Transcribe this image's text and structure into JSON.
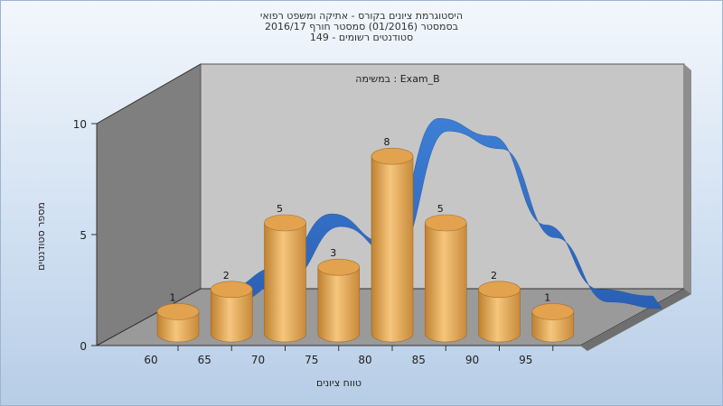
{
  "title": {
    "line1": "היסטוגרמת ציונים בקורס - אתיקה ומשפט רפואי",
    "line2": "בסמסטר  (01/2016)  סמסטר חורף 2016/17",
    "line3": "סטודנטים רשומים - 149"
  },
  "colors": {
    "bar": "#e2a24e",
    "curve": "#2f6cc4",
    "back_wall": "#c6c6c6",
    "side_wall": "#7f7f7f",
    "floor": "#9a9a9a"
  },
  "chart_data": {
    "type": "bar",
    "subtitle": "במשימה : Exam_B",
    "xlabel": "טווח ציונים",
    "ylabel": "מספר סטודנטים",
    "x_ticks": [
      "60",
      "65",
      "70",
      "75",
      "80",
      "85",
      "90",
      "95"
    ],
    "y_ticks": [
      "0",
      "5",
      "10"
    ],
    "ylim": [
      0,
      10
    ],
    "grid": false,
    "legend": "none",
    "bars": [
      {
        "x": "60",
        "value": 1
      },
      {
        "x": "65",
        "value": 2
      },
      {
        "x": "70",
        "value": 5
      },
      {
        "x": "75",
        "value": 3
      },
      {
        "x": "80",
        "value": 8
      },
      {
        "x": "85",
        "value": 5
      },
      {
        "x": "90",
        "value": 2
      },
      {
        "x": "95",
        "value": 1
      }
    ],
    "curve": {
      "type": "area",
      "x": [
        62.5,
        67.5,
        72.5,
        77.5,
        82.5,
        87.5,
        92.5,
        97.5,
        102.5
      ],
      "values": [
        0.5,
        1.5,
        3.9,
        2.6,
        8.2,
        7.4,
        3.4,
        0.5,
        0.2
      ]
    }
  }
}
